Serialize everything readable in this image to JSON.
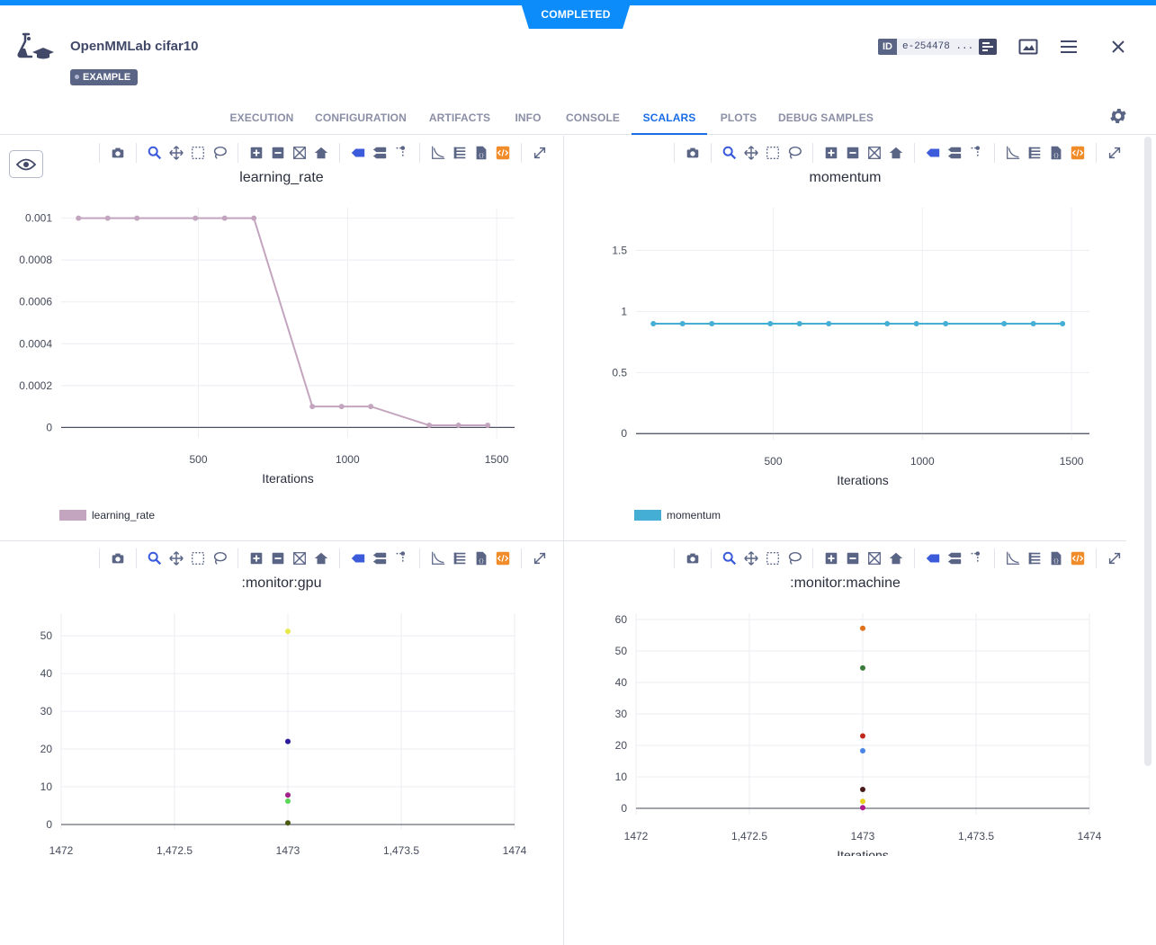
{
  "status": {
    "label": "COMPLETED",
    "color": "#0c8cfb"
  },
  "experiment": {
    "title": "OpenMMLab cifar10",
    "tag": "EXAMPLE",
    "id_label": "ID",
    "id_value": "e-254478 ..."
  },
  "header_icons": [
    "details-icon",
    "plot-icon",
    "menu-icon",
    "close-icon"
  ],
  "tabs": [
    {
      "label": "EXECUTION",
      "active": false
    },
    {
      "label": "CONFIGURATION",
      "active": false
    },
    {
      "label": "ARTIFACTS",
      "active": false
    },
    {
      "label": "INFO",
      "active": false
    },
    {
      "label": "CONSOLE",
      "active": false
    },
    {
      "label": "SCALARS",
      "active": true
    },
    {
      "label": "PLOTS",
      "active": false
    },
    {
      "label": "DEBUG SAMPLES",
      "active": false
    }
  ],
  "modebar_icons": [
    "camera-icon",
    "zoom-icon",
    "pan-icon",
    "box-select-icon",
    "lasso-icon",
    "zoom-in-icon",
    "zoom-out-icon",
    "autoscale-icon",
    "reset-axes-icon",
    "hover-closest-icon",
    "hover-compare-icon",
    "spike-lines-icon",
    "log-scale-icon",
    "data-table-icon",
    "download-json-icon",
    "embed-icon",
    "maximize-icon"
  ],
  "chart_data": [
    {
      "type": "line",
      "title": "learning_rate",
      "xlabel": "Iterations",
      "ylabel": "",
      "xlim": [
        40,
        1560
      ],
      "ylim": [
        -5e-05,
        0.00105
      ],
      "xticks": [
        500,
        1000,
        1500
      ],
      "xtick_labels": [
        "500",
        "1000",
        "1500"
      ],
      "yticks": [
        0,
        0.0002,
        0.0004,
        0.0006,
        0.0008,
        0.001
      ],
      "ytick_labels": [
        "0",
        "0.0002",
        "0.0004",
        "0.0006",
        "0.0008",
        "0.001"
      ],
      "grid": true,
      "legend_position": "bottom-left",
      "series": [
        {
          "name": "learning_rate",
          "color": "#c3a5bf",
          "x": [
            98,
            196,
            294,
            490,
            588,
            686,
            882,
            980,
            1078,
            1274,
            1372,
            1470
          ],
          "y": [
            0.001,
            0.001,
            0.001,
            0.001,
            0.001,
            0.001,
            0.0001,
            0.0001,
            0.0001,
            1e-05,
            1e-05,
            1e-05
          ]
        }
      ]
    },
    {
      "type": "line",
      "title": "momentum",
      "xlabel": "Iterations",
      "ylabel": "",
      "xlim": [
        40,
        1560
      ],
      "ylim": [
        -0.05,
        1.85
      ],
      "xticks": [
        500,
        1000,
        1500
      ],
      "xtick_labels": [
        "500",
        "1000",
        "1500"
      ],
      "yticks": [
        0,
        0.5,
        1,
        1.5
      ],
      "ytick_labels": [
        "0",
        "0.5",
        "1",
        "1.5"
      ],
      "grid": true,
      "legend_position": "bottom-left",
      "series": [
        {
          "name": "momentum",
          "color": "#45aed4",
          "x": [
            98,
            196,
            294,
            490,
            588,
            686,
            882,
            980,
            1078,
            1274,
            1372,
            1470
          ],
          "y": [
            0.9,
            0.9,
            0.9,
            0.9,
            0.9,
            0.9,
            0.9,
            0.9,
            0.9,
            0.9,
            0.9,
            0.9
          ]
        }
      ]
    },
    {
      "type": "scatter",
      "title": ":monitor:gpu",
      "xlabel": "",
      "ylabel": "",
      "xlim": [
        1472,
        1474
      ],
      "ylim": [
        -1.2,
        56
      ],
      "xticks": [
        1472,
        1472.5,
        1473,
        1473.5,
        1474
      ],
      "xtick_labels": [
        "1472",
        "1,472.5",
        "1473",
        "1,473.5",
        "1474"
      ],
      "yticks": [
        0,
        10,
        20,
        30,
        40,
        50
      ],
      "ytick_labels": [
        "0",
        "10",
        "20",
        "30",
        "40",
        "50"
      ],
      "grid": true,
      "points": [
        {
          "x": 1473,
          "y": 51.2,
          "color": "#e8e84a"
        },
        {
          "x": 1473,
          "y": 22,
          "color": "#2a1a9c"
        },
        {
          "x": 1473,
          "y": 7.8,
          "color": "#a0208c"
        },
        {
          "x": 1473,
          "y": 6.2,
          "color": "#5ad85a"
        },
        {
          "x": 1473,
          "y": 0.4,
          "color": "#4a5a10"
        }
      ]
    },
    {
      "type": "scatter",
      "title": ":monitor:machine",
      "xlabel": "Iterations",
      "ylabel": "",
      "xlim": [
        1472,
        1474
      ],
      "ylim": [
        -2,
        62
      ],
      "xticks": [
        1472,
        1472.5,
        1473,
        1473.5,
        1474
      ],
      "xtick_labels": [
        "1472",
        "1,472.5",
        "1473",
        "1,473.5",
        "1474"
      ],
      "yticks": [
        0,
        10,
        20,
        30,
        40,
        50,
        60
      ],
      "ytick_labels": [
        "0",
        "10",
        "20",
        "30",
        "40",
        "50",
        "60"
      ],
      "grid": true,
      "points": [
        {
          "x": 1473,
          "y": 57.2,
          "color": "#e0701a"
        },
        {
          "x": 1473,
          "y": 44.6,
          "color": "#3a7a3a"
        },
        {
          "x": 1473,
          "y": 23,
          "color": "#c0281c"
        },
        {
          "x": 1473,
          "y": 18.3,
          "color": "#4a86e8"
        },
        {
          "x": 1473,
          "y": 6,
          "color": "#4a1a1a"
        },
        {
          "x": 1473,
          "y": 2.2,
          "color": "#e8d020"
        },
        {
          "x": 1473,
          "y": 0.2,
          "color": "#b01a8c"
        }
      ]
    }
  ]
}
